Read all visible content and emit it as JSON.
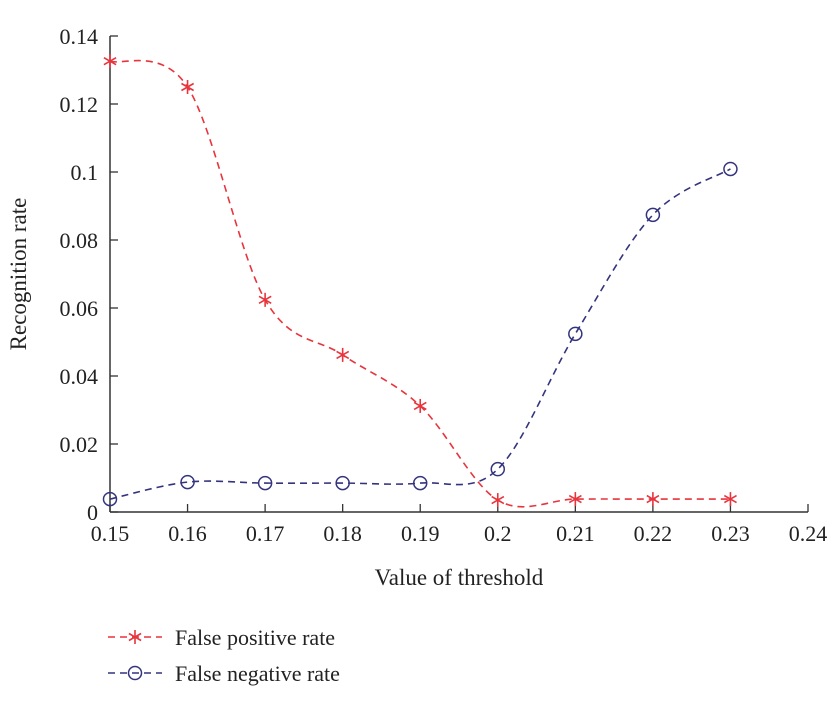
{
  "chart_data": {
    "type": "line",
    "title": "",
    "xlabel": "Value of threshold",
    "ylabel": "Recognition rate",
    "xlim": [
      0.15,
      0.24
    ],
    "ylim": [
      0,
      0.14
    ],
    "xticks": [
      "0.15",
      "0.16",
      "0.17",
      "0.18",
      "0.19",
      "0.2",
      "0.21",
      "0.22",
      "0.23",
      "0.24"
    ],
    "yticks": [
      "0",
      "0.02",
      "0.04",
      "0.06",
      "0.08",
      "0.1",
      "0.12",
      "0.14"
    ],
    "grid": false,
    "legend_position": "bottom-left",
    "x": [
      0.15,
      0.16,
      0.17,
      0.18,
      0.19,
      0.2,
      0.21,
      0.22,
      0.23
    ],
    "series": [
      {
        "name": "False positive rate",
        "color": "#e8343c",
        "marker": "asterisk",
        "values": [
          0.1326,
          0.125,
          0.0624,
          0.0462,
          0.0312,
          0.0035,
          0.0038,
          0.0038,
          0.0038
        ]
      },
      {
        "name": "False negative rate",
        "color": "#34347e",
        "marker": "circle",
        "values": [
          0.0038,
          0.0088,
          0.0085,
          0.0085,
          0.0085,
          0.0126,
          0.0524,
          0.0874,
          0.1009
        ]
      }
    ]
  }
}
